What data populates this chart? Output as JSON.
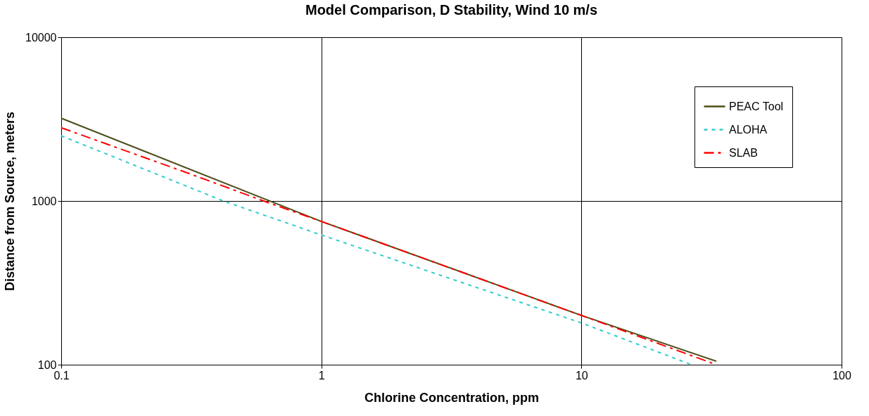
{
  "chart_data": {
    "type": "line",
    "title": "Model Comparison, D Stability, Wind 10 m/s",
    "xlabel": "Chlorine Concentration, ppm",
    "ylabel": "Distance from Source, meters",
    "log": "xy",
    "xlim": [
      0.1,
      100
    ],
    "ylim": [
      100,
      10000
    ],
    "xticks": [
      0.1,
      1,
      10,
      100
    ],
    "yticks": [
      100,
      1000,
      10000
    ],
    "grid": true,
    "legend": "top right",
    "series": [
      {
        "name": "PEAC Tool",
        "color": "#4d4d1a",
        "line_style": "solid",
        "x": [
          0.1,
          1,
          10,
          33
        ],
        "values": [
          3200,
          750,
          200,
          105
        ]
      },
      {
        "name": "ALOHA",
        "color": "#33cccc",
        "line_style": "dotted",
        "x": [
          0.1,
          0.42,
          1,
          10,
          26.5
        ],
        "values": [
          2500,
          1000,
          620,
          180,
          100
        ]
      },
      {
        "name": "SLAB",
        "color": "#ff0000",
        "line_style": "dashed",
        "x": [
          0.1,
          0.3,
          0.6,
          1,
          10,
          33
        ],
        "values": [
          2800,
          1500,
          1000,
          750,
          200,
          100
        ]
      }
    ]
  }
}
